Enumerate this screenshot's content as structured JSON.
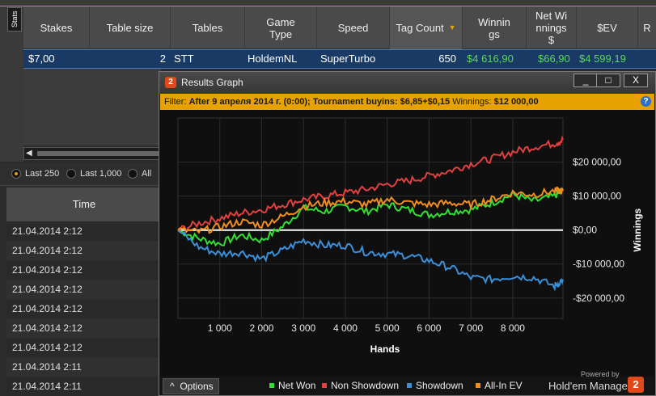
{
  "stats_panel": {
    "tab_label": "Stats",
    "columns": [
      "Stakes",
      "Table size",
      "Tables",
      "Game Type",
      "Speed",
      "Tag Count",
      "Winnings",
      "Net Winnings $",
      "$EV",
      "R"
    ],
    "row": {
      "stakes": "$7,00",
      "table_size": "2",
      "tables": "STT",
      "game_type": "HoldemNL",
      "speed": "SuperTurbo",
      "tag_count": "650",
      "winnings": "$4 616,90",
      "net_winnings": "$66,90",
      "ev": "$4 599,19"
    },
    "radios": [
      "Last 250",
      "Last 1,000",
      "All"
    ],
    "time_header": "Time",
    "times": [
      "21.04.2014 2:12",
      "21.04.2014 2:12",
      "21.04.2014 2:12",
      "21.04.2014 2:12",
      "21.04.2014 2:12",
      "21.04.2014 2:12",
      "21.04.2014 2:12",
      "21.04.2014 2:11",
      "21.04.2014 2:11"
    ]
  },
  "graph_window": {
    "icon_text": "2",
    "title": "Results Graph",
    "buttons": [
      "_",
      "□",
      "X"
    ],
    "filter_label": "Filter:",
    "filter_text": "After 9 апреля 2014 г. (0:00); Tournament buyins: $6,85+$0,15",
    "filter_winnings_label": "Winnings:",
    "filter_winnings_value": "$12 000,00",
    "help": "?",
    "options_label": "Options",
    "options_arrow": "^",
    "powered_by": "Powered by",
    "brand": "Hold'em Manager",
    "brand_logo": "2"
  },
  "chart_data": {
    "type": "line",
    "xlabel": "Hands",
    "ylabel": "Winnings",
    "x_ticks": [
      1000,
      2000,
      3000,
      4000,
      5000,
      6000,
      7000,
      8000
    ],
    "x_tick_labels": [
      "1 000",
      "2 000",
      "3 000",
      "4 000",
      "5 000",
      "6 000",
      "7 000",
      "8 000"
    ],
    "xlim": [
      0,
      9200
    ],
    "y_ticks": [
      20000,
      10000,
      0,
      -10000,
      -20000
    ],
    "y_tick_labels": [
      "$20 000,00",
      "$10 000,00",
      "$0,00",
      "-$10 000,00",
      "-$20 000,00"
    ],
    "ylim": [
      -26000,
      33000
    ],
    "x": [
      0,
      500,
      1000,
      1500,
      2000,
      2500,
      3000,
      3500,
      4000,
      4500,
      5000,
      5500,
      6000,
      6500,
      7000,
      7500,
      8000,
      8500,
      9000,
      9200
    ],
    "series": [
      {
        "name": "Net Won",
        "color": "#33dd33",
        "values": [
          0,
          -2500,
          -4000,
          -1500,
          -3000,
          1000,
          6500,
          5500,
          7000,
          5500,
          7500,
          6000,
          4500,
          5500,
          6000,
          8000,
          10500,
          8500,
          10000,
          12000
        ]
      },
      {
        "name": "Non Showdown",
        "color": "#e04040",
        "values": [
          0,
          2000,
          3500,
          5000,
          6000,
          7500,
          9000,
          10000,
          11000,
          12000,
          13500,
          14500,
          16000,
          17500,
          19500,
          21000,
          23000,
          24500,
          25500,
          26500
        ]
      },
      {
        "name": "Showdown",
        "color": "#3a8fd8",
        "values": [
          0,
          -5000,
          -7000,
          -6500,
          -8500,
          -6000,
          -3000,
          -4500,
          -4500,
          -6500,
          -7000,
          -7500,
          -9000,
          -11000,
          -14000,
          -14500,
          -13500,
          -14000,
          -16500,
          -14500
        ]
      },
      {
        "name": "All-In EV",
        "color": "#f08c20",
        "values": [
          0,
          -500,
          1000,
          2500,
          1500,
          4000,
          7000,
          8000,
          8500,
          7500,
          9000,
          8000,
          7500,
          8000,
          7500,
          9000,
          11000,
          10500,
          11500,
          11500
        ]
      }
    ],
    "zero_line_color": "#ffffff",
    "grid": true,
    "legend": "bottom"
  }
}
